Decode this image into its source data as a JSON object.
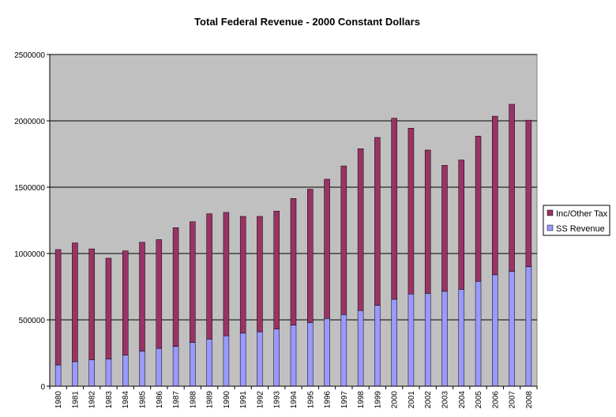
{
  "chart_data": {
    "type": "bar",
    "stacked": true,
    "title": "Total Federal Revenue - 2000 Constant Dollars",
    "xlabel": "",
    "ylabel": "",
    "ylim": [
      0,
      2500000
    ],
    "yticks": [
      0,
      500000,
      1000000,
      1500000,
      2000000,
      2500000
    ],
    "grid": true,
    "legend_position": "right",
    "categories": [
      "1980",
      "1981",
      "1982",
      "1983",
      "1984",
      "1985",
      "1986",
      "1987",
      "1988",
      "1989",
      "1990",
      "1991",
      "1992",
      "1993",
      "1994",
      "1995",
      "1996",
      "1997",
      "1998",
      "1999",
      "2000",
      "2001",
      "2002",
      "2003",
      "2004",
      "2005",
      "2006",
      "2007",
      "2008"
    ],
    "series": [
      {
        "name": "SS Revenue",
        "color": "#9999FF",
        "values": [
          160000,
          185000,
          200000,
          205000,
          235000,
          265000,
          285000,
          300000,
          330000,
          355000,
          380000,
          400000,
          410000,
          430000,
          460000,
          480000,
          510000,
          540000,
          570000,
          610000,
          655000,
          695000,
          700000,
          715000,
          730000,
          790000,
          840000,
          865000,
          900000
        ]
      },
      {
        "name": "Inc/Other Tax",
        "color": "#993366",
        "values": [
          870000,
          895000,
          835000,
          760000,
          785000,
          820000,
          820000,
          895000,
          910000,
          945000,
          930000,
          880000,
          870000,
          890000,
          955000,
          1005000,
          1050000,
          1120000,
          1220000,
          1265000,
          1365000,
          1250000,
          1080000,
          950000,
          975000,
          1095000,
          1195000,
          1260000,
          1105000
        ]
      }
    ],
    "plot_background": "#C0C0C0"
  }
}
